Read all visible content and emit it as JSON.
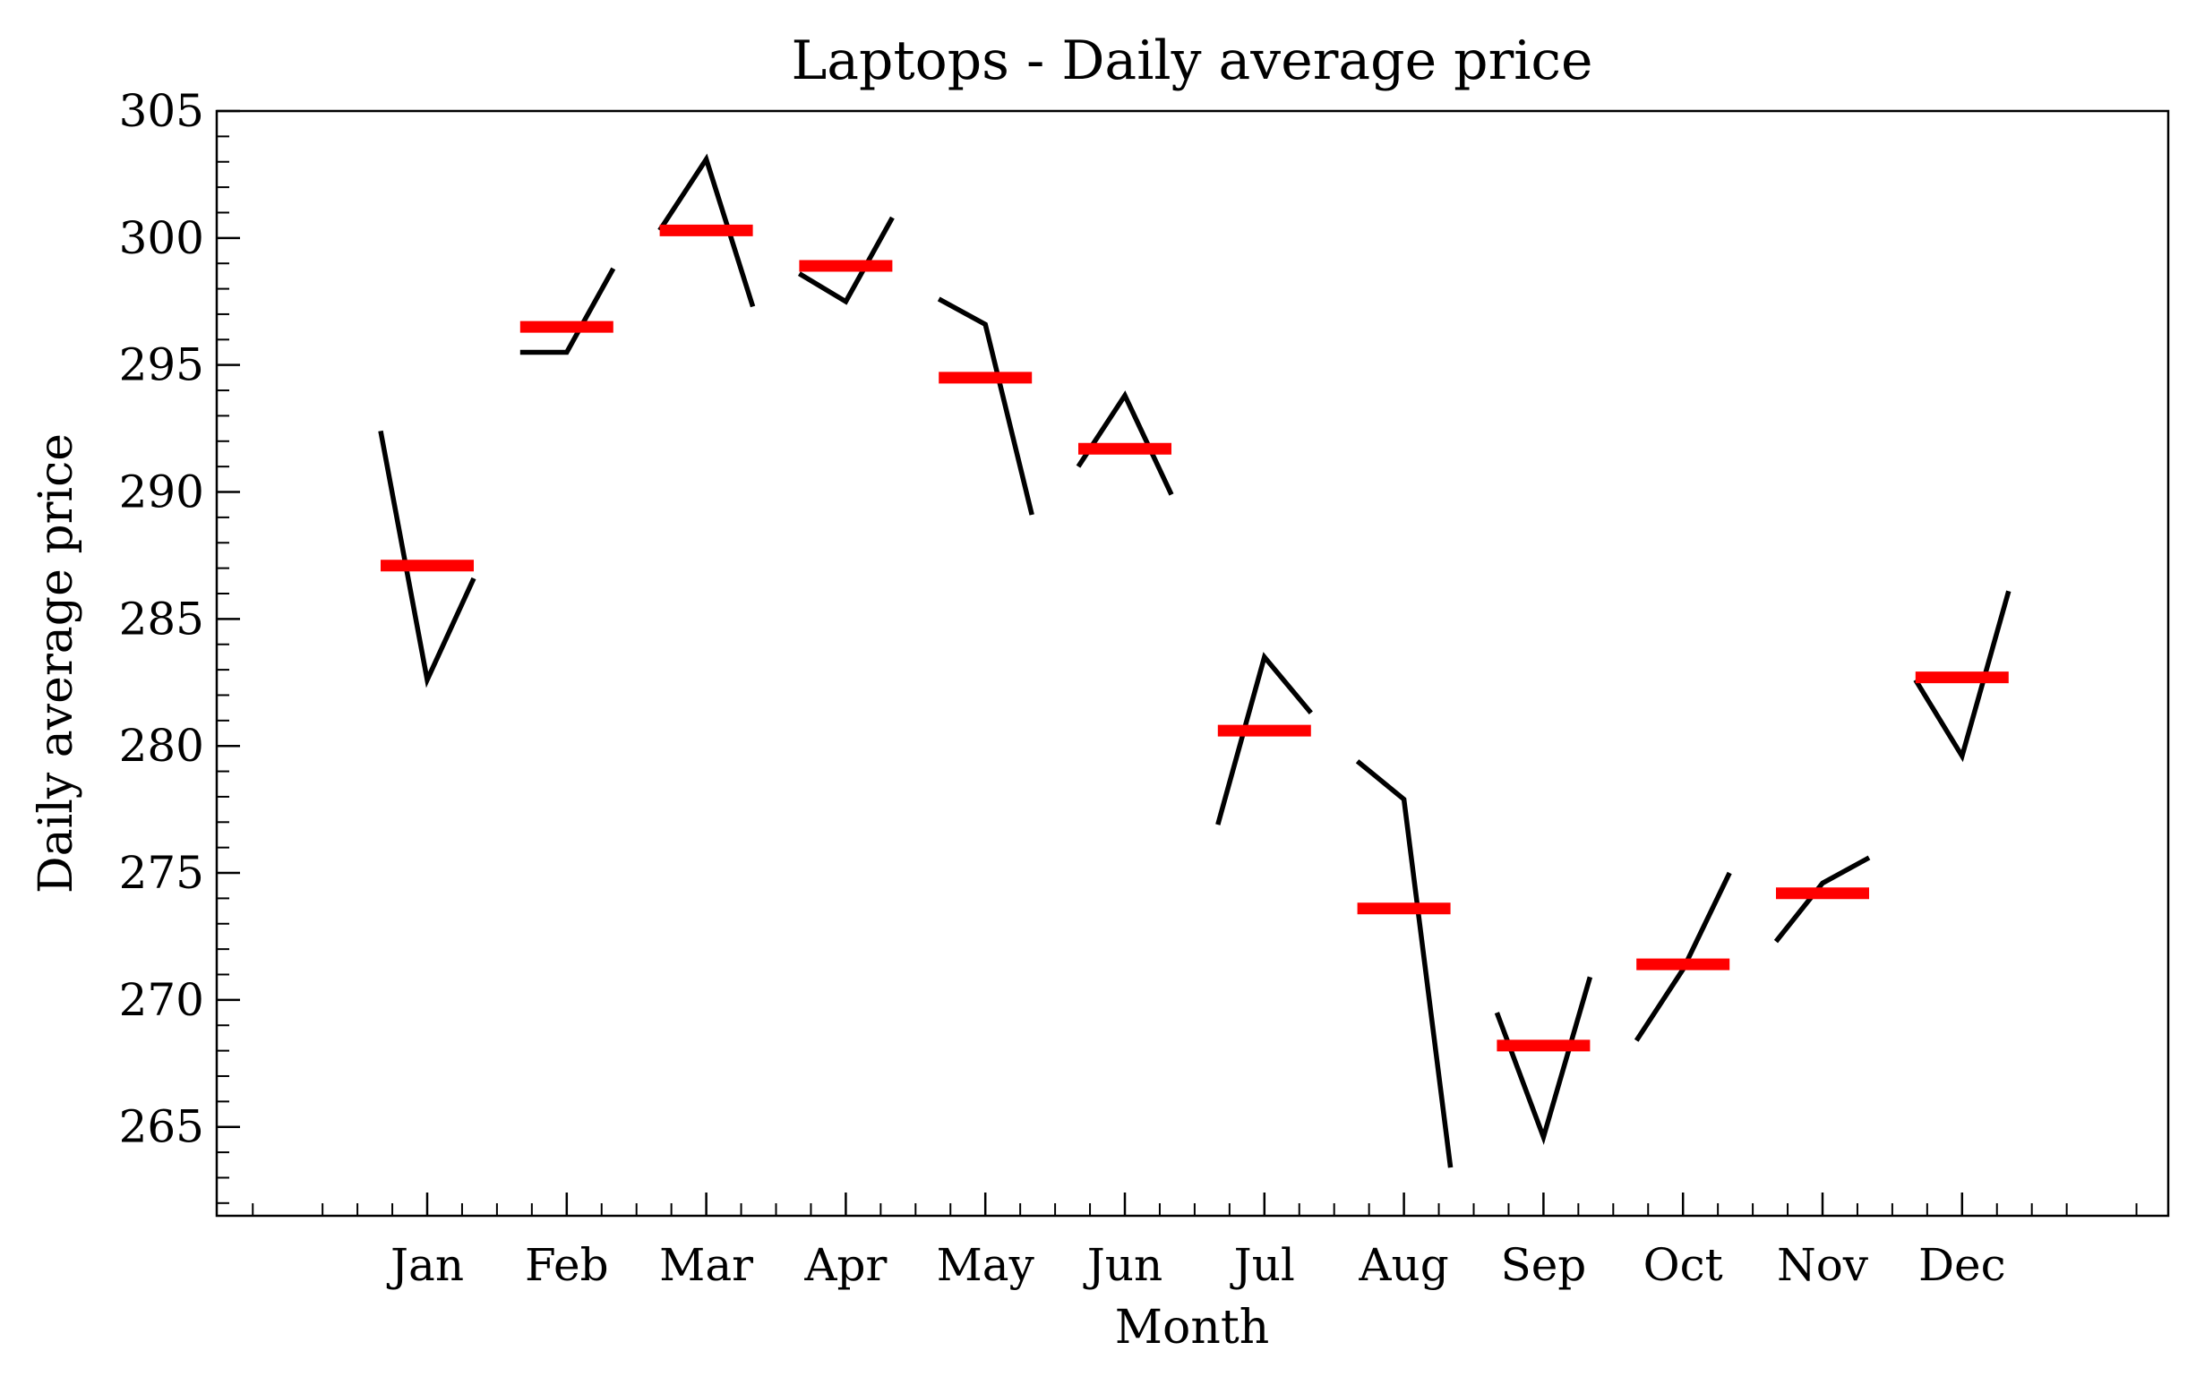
{
  "chart_data": {
    "type": "line",
    "title": "Laptops - Daily average price",
    "xlabel": "Month",
    "ylabel": "Daily average price",
    "categories": [
      "Jan",
      "Feb",
      "Mar",
      "Apr",
      "May",
      "Jun",
      "Jul",
      "Aug",
      "Sep",
      "Oct",
      "Nov",
      "Dec"
    ],
    "ylim": [
      261.5,
      305
    ],
    "yticks": [
      265,
      270,
      275,
      280,
      285,
      290,
      295,
      300,
      305
    ],
    "grid": false,
    "series": [
      {
        "role": "daily-pattern",
        "color": "#000000",
        "values": [
          [
            292.4,
            282.6,
            286.6
          ],
          [
            295.5,
            295.5,
            298.8
          ],
          [
            300.3,
            303.1,
            297.3
          ],
          [
            298.6,
            297.5,
            300.8
          ],
          [
            297.6,
            296.6,
            289.1
          ],
          [
            291.0,
            293.8,
            289.9
          ],
          [
            276.9,
            283.5,
            281.3
          ],
          [
            279.4,
            277.9,
            263.4
          ],
          [
            269.5,
            264.6,
            270.9
          ],
          [
            268.4,
            271.2,
            275.0
          ],
          [
            272.3,
            274.6,
            275.6
          ],
          [
            282.6,
            279.6,
            286.1
          ]
        ]
      },
      {
        "role": "monthly-mean",
        "color": "#ff0000",
        "values": [
          287.1,
          296.5,
          300.3,
          298.9,
          294.5,
          291.7,
          280.6,
          273.6,
          268.2,
          271.4,
          274.2,
          282.7
        ]
      }
    ]
  }
}
